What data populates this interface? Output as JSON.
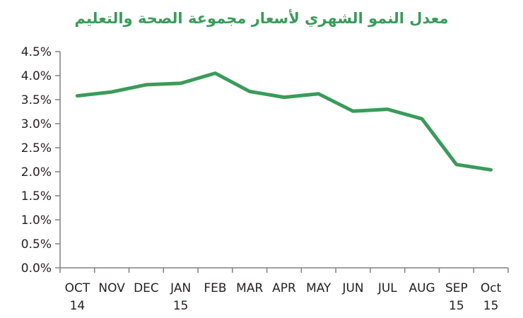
{
  "chart_data": {
    "type": "line",
    "title": "معدل النمو الشهري لأسعار مجموعة الصحة والتعليم",
    "xlabel": "",
    "ylabel": "",
    "categories": [
      [
        "OCT",
        "14"
      ],
      [
        "NOV"
      ],
      [
        "DEC"
      ],
      [
        "JAN",
        "15"
      ],
      [
        "FEB"
      ],
      [
        "MAR"
      ],
      [
        "APR"
      ],
      [
        "MAY"
      ],
      [
        "JUN"
      ],
      [
        "JUL"
      ],
      [
        "AUG"
      ],
      [
        "SEP",
        "15"
      ],
      [
        "Oct",
        "15"
      ]
    ],
    "series": [
      {
        "values": [
          3.58,
          3.66,
          3.81,
          3.84,
          4.05,
          3.67,
          3.55,
          3.62,
          3.26,
          3.3,
          3.1,
          2.15,
          2.04
        ],
        "color": "#3a9b5a"
      }
    ],
    "ylim": [
      0,
      4.5
    ],
    "yticks": [
      "0.0%",
      "0.5%",
      "1.0%",
      "1.5%",
      "2.0%",
      "2.5%",
      "3.0%",
      "3.5%",
      "4.0%",
      "4.5%"
    ],
    "grid": false,
    "legend": "none"
  }
}
